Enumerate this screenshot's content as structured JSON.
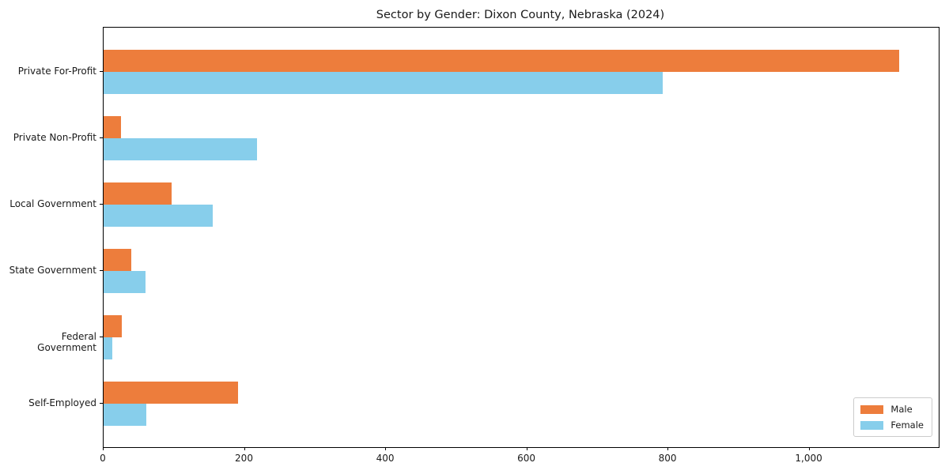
{
  "chart_data": {
    "type": "bar",
    "orientation": "horizontal",
    "title": "Sector by Gender: Dixon County, Nebraska (2024)",
    "categories": [
      "Private For-Profit",
      "Private Non-Profit",
      "Local Government",
      "State Government",
      "Federal Government",
      "Self-Employed"
    ],
    "series": [
      {
        "name": "Male",
        "color": "#ed7d3c",
        "values": [
          1127,
          25,
          96,
          39,
          26,
          190
        ]
      },
      {
        "name": "Female",
        "color": "#87ceeb",
        "values": [
          792,
          217,
          155,
          59,
          12,
          60
        ]
      }
    ],
    "xlabel": "",
    "ylabel": "",
    "xlim": [
      0,
      1183
    ],
    "x_ticks": [
      {
        "value": 0,
        "label": "0"
      },
      {
        "value": 200,
        "label": "200"
      },
      {
        "value": 400,
        "label": "400"
      },
      {
        "value": 600,
        "label": "600"
      },
      {
        "value": 800,
        "label": "800"
      },
      {
        "value": 1000,
        "label": "1,000"
      }
    ],
    "grid": false,
    "legend": {
      "position": "lower right"
    },
    "colors": {
      "background": "#ffffff",
      "spine": "#000000",
      "legend_border": "#cccccc",
      "text": "#1a1a1a"
    }
  }
}
